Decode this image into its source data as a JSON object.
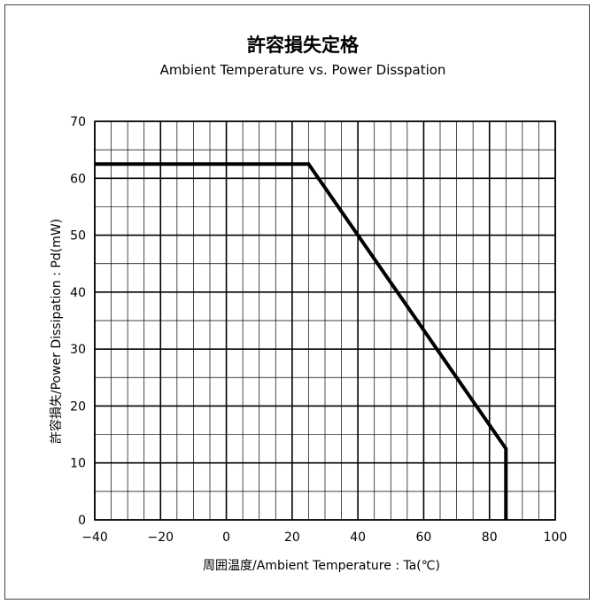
{
  "chart_data": {
    "type": "line",
    "title": "許容損失定格",
    "subtitle": "Ambient Temperature vs. Power Disspation",
    "xlabel": "周囲温度/Ambient Temperature : Ta(℃)",
    "ylabel": "許容損失/Power Dissipation : Pd(mW)",
    "xlim": [
      -40,
      100
    ],
    "ylim": [
      0,
      70
    ],
    "x_major_ticks": [
      -40,
      -20,
      0,
      20,
      40,
      60,
      80,
      100
    ],
    "y_major_ticks": [
      0,
      10,
      20,
      30,
      40,
      50,
      60,
      70
    ],
    "x_tick_labels": [
      "−40",
      "−20",
      "0",
      "20",
      "40",
      "60",
      "80",
      "100"
    ],
    "y_tick_labels": [
      "0",
      "10",
      "20",
      "30",
      "40",
      "50",
      "60",
      "70"
    ],
    "grid": true,
    "series": [
      {
        "x": [
          -40,
          25,
          85,
          85
        ],
        "y": [
          62.5,
          62.5,
          12.5,
          0
        ]
      }
    ]
  }
}
